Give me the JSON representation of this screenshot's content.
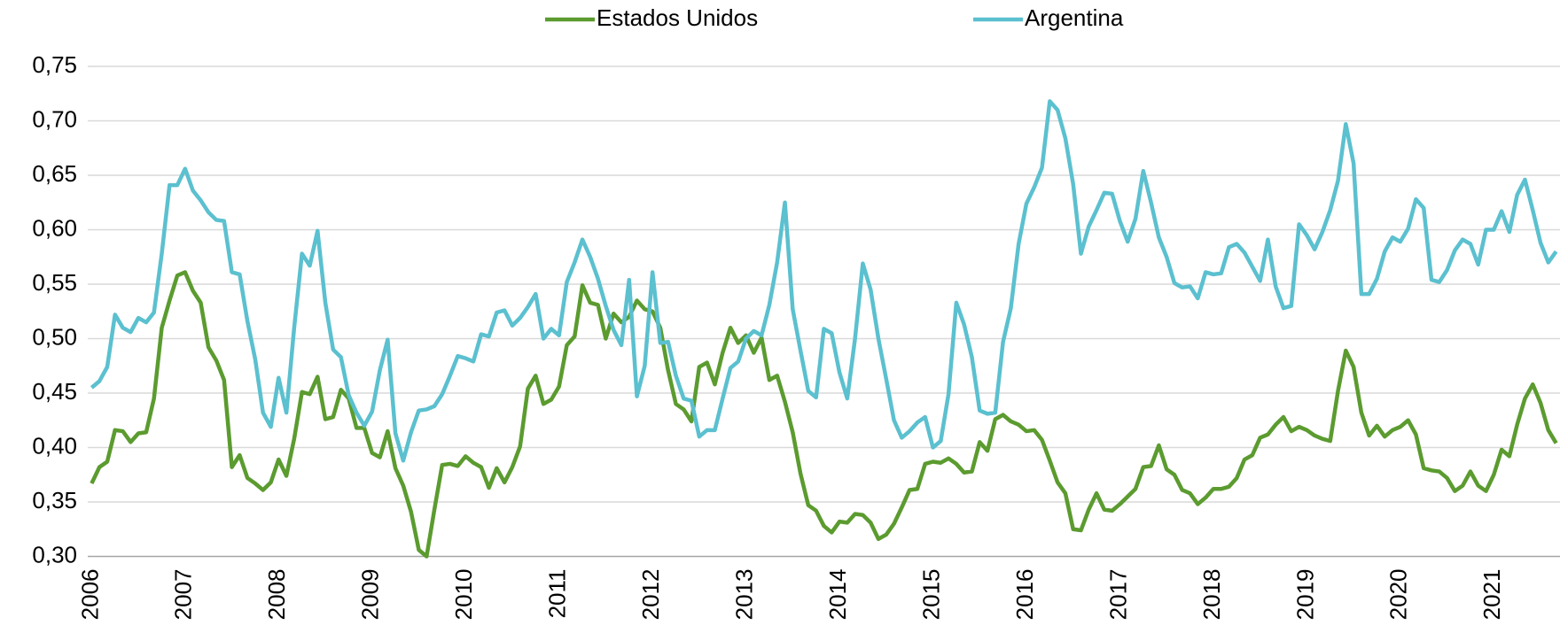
{
  "chart_data": {
    "type": "line",
    "categories": [
      "2006",
      null,
      null,
      null,
      null,
      null,
      null,
      null,
      null,
      null,
      null,
      null,
      "2007",
      null,
      null,
      null,
      null,
      null,
      null,
      null,
      null,
      null,
      null,
      null,
      "2008",
      null,
      null,
      null,
      null,
      null,
      null,
      null,
      null,
      null,
      null,
      null,
      "2009",
      null,
      null,
      null,
      null,
      null,
      null,
      null,
      null,
      null,
      null,
      null,
      "2010",
      null,
      null,
      null,
      null,
      null,
      null,
      null,
      null,
      null,
      null,
      null,
      "2011",
      null,
      null,
      null,
      null,
      null,
      null,
      null,
      null,
      null,
      null,
      null,
      "2012",
      null,
      null,
      null,
      null,
      null,
      null,
      null,
      null,
      null,
      null,
      null,
      "2013",
      null,
      null,
      null,
      null,
      null,
      null,
      null,
      null,
      null,
      null,
      null,
      "2014",
      null,
      null,
      null,
      null,
      null,
      null,
      null,
      null,
      null,
      null,
      null,
      "2015",
      null,
      null,
      null,
      null,
      null,
      null,
      null,
      null,
      null,
      null,
      null,
      "2016",
      null,
      null,
      null,
      null,
      null,
      null,
      null,
      null,
      null,
      null,
      null,
      "2017",
      null,
      null,
      null,
      null,
      null,
      null,
      null,
      null,
      null,
      null,
      null,
      "2018",
      null,
      null,
      null,
      null,
      null,
      null,
      null,
      null,
      null,
      null,
      null,
      "2019",
      null,
      null,
      null,
      null,
      null,
      null,
      null,
      null,
      null,
      null,
      null,
      "2020",
      null,
      null,
      null,
      null,
      null,
      null,
      null,
      null,
      null,
      null,
      null,
      "2021",
      null,
      null,
      null,
      null,
      null,
      null,
      null,
      null
    ],
    "series": [
      {
        "name": "Estados Unidos",
        "color": "#5b9b2f",
        "values": [
          0.367,
          0.382,
          0.387,
          0.416,
          0.415,
          0.405,
          0.413,
          0.414,
          0.445,
          0.51,
          0.535,
          0.558,
          0.561,
          0.544,
          0.533,
          0.492,
          0.48,
          0.462,
          0.382,
          0.393,
          0.372,
          0.367,
          0.361,
          0.368,
          0.389,
          0.374,
          0.408,
          0.451,
          0.449,
          0.465,
          0.426,
          0.428,
          0.453,
          0.445,
          0.418,
          0.418,
          0.395,
          0.391,
          0.415,
          0.381,
          0.365,
          0.341,
          0.306,
          0.3,
          0.343,
          0.384,
          0.385,
          0.383,
          0.392,
          0.386,
          0.382,
          0.363,
          0.381,
          0.368,
          0.382,
          0.401,
          0.454,
          0.466,
          0.44,
          0.444,
          0.456,
          0.494,
          0.502,
          0.549,
          0.533,
          0.531,
          0.5,
          0.523,
          0.515,
          0.52,
          0.535,
          0.527,
          0.525,
          0.51,
          0.471,
          0.44,
          0.435,
          0.424,
          0.474,
          0.478,
          0.458,
          0.487,
          0.51,
          0.496,
          0.503,
          0.487,
          0.501,
          0.462,
          0.466,
          0.442,
          0.414,
          0.376,
          0.347,
          0.342,
          0.328,
          0.322,
          0.332,
          0.331,
          0.339,
          0.338,
          0.331,
          0.316,
          0.32,
          0.33,
          0.345,
          0.361,
          0.362,
          0.385,
          0.387,
          0.386,
          0.39,
          0.385,
          0.377,
          0.378,
          0.405,
          0.397,
          0.426,
          0.43,
          0.424,
          0.421,
          0.415,
          0.416,
          0.407,
          0.388,
          0.368,
          0.358,
          0.325,
          0.324,
          0.343,
          0.358,
          0.343,
          0.342,
          0.348,
          0.355,
          0.362,
          0.382,
          0.383,
          0.402,
          0.38,
          0.375,
          0.361,
          0.358,
          0.348,
          0.354,
          0.362,
          0.362,
          0.364,
          0.372,
          0.389,
          0.393,
          0.409,
          0.412,
          0.421,
          0.428,
          0.415,
          0.419,
          0.416,
          0.411,
          0.408,
          0.406,
          0.452,
          0.489,
          0.474,
          0.432,
          0.411,
          0.42,
          0.41,
          0.416,
          0.419,
          0.425,
          0.412,
          0.381,
          0.379,
          0.378,
          0.372,
          0.36,
          0.365,
          0.378,
          0.365,
          0.36,
          0.375,
          0.398,
          0.392,
          0.421,
          0.445,
          0.458,
          0.441,
          0.416,
          0.404
        ]
      },
      {
        "name": "Argentina",
        "color": "#5bc0cf",
        "values": [
          0.455,
          0.461,
          0.474,
          0.522,
          0.51,
          0.506,
          0.519,
          0.515,
          0.524,
          0.578,
          0.641,
          0.641,
          0.656,
          0.636,
          0.627,
          0.616,
          0.609,
          0.608,
          0.561,
          0.559,
          0.516,
          0.481,
          0.432,
          0.419,
          0.464,
          0.432,
          0.51,
          0.578,
          0.567,
          0.599,
          0.533,
          0.49,
          0.483,
          0.448,
          0.432,
          0.42,
          0.433,
          0.471,
          0.499,
          0.413,
          0.388,
          0.414,
          0.434,
          0.435,
          0.438,
          0.449,
          0.466,
          0.484,
          0.482,
          0.479,
          0.504,
          0.502,
          0.524,
          0.526,
          0.512,
          0.519,
          0.529,
          0.541,
          0.5,
          0.509,
          0.503,
          0.552,
          0.57,
          0.591,
          0.575,
          0.555,
          0.53,
          0.508,
          0.494,
          0.554,
          0.447,
          0.475,
          0.561,
          0.496,
          0.497,
          0.466,
          0.445,
          0.443,
          0.41,
          0.416,
          0.416,
          0.445,
          0.473,
          0.479,
          0.5,
          0.507,
          0.503,
          0.531,
          0.57,
          0.625,
          0.527,
          0.489,
          0.452,
          0.446,
          0.509,
          0.505,
          0.469,
          0.445,
          0.5,
          0.569,
          0.545,
          0.5,
          0.463,
          0.425,
          0.409,
          0.415,
          0.423,
          0.428,
          0.4,
          0.406,
          0.449,
          0.533,
          0.513,
          0.483,
          0.434,
          0.431,
          0.432,
          0.497,
          0.528,
          0.587,
          0.624,
          0.639,
          0.657,
          0.718,
          0.71,
          0.684,
          0.642,
          0.578,
          0.603,
          0.618,
          0.634,
          0.633,
          0.608,
          0.589,
          0.61,
          0.654,
          0.625,
          0.593,
          0.575,
          0.551,
          0.547,
          0.548,
          0.537,
          0.561,
          0.559,
          0.56,
          0.584,
          0.587,
          0.579,
          0.566,
          0.553,
          0.591,
          0.548,
          0.528,
          0.53,
          0.605,
          0.595,
          0.582,
          0.598,
          0.618,
          0.645,
          0.697,
          0.661,
          0.541,
          0.541,
          0.555,
          0.58,
          0.593,
          0.589,
          0.601,
          0.628,
          0.62,
          0.554,
          0.552,
          0.563,
          0.581,
          0.591,
          0.587,
          0.568,
          0.6,
          0.6,
          0.617,
          0.598,
          0.632,
          0.646,
          0.618,
          0.588,
          0.57,
          0.58
        ]
      }
    ],
    "ylim": [
      0.3,
      0.75
    ],
    "yticks": [
      {
        "value": 0.3,
        "label": "0,30"
      },
      {
        "value": 0.35,
        "label": "0,35"
      },
      {
        "value": 0.4,
        "label": "0,40"
      },
      {
        "value": 0.45,
        "label": "0,45"
      },
      {
        "value": 0.5,
        "label": "0,50"
      },
      {
        "value": 0.55,
        "label": "0,55"
      },
      {
        "value": 0.6,
        "label": "0,60"
      },
      {
        "value": 0.65,
        "label": "0,65"
      },
      {
        "value": 0.7,
        "label": "0,70"
      },
      {
        "value": 0.75,
        "label": "0,75"
      }
    ],
    "grid": true,
    "legend": "top"
  }
}
